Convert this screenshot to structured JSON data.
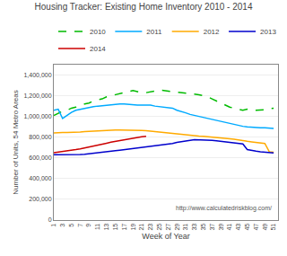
{
  "chart_data": {
    "type": "line",
    "title": "Housing Tracker: Existing Home Inventory 2010 - 2014",
    "x_label": "Week of Year",
    "y_label": "Number of Units, 54 Metro Areas",
    "annotations": [
      "http://www.calculatedriskblog.com/"
    ],
    "x": [
      1,
      2,
      3,
      4,
      5,
      6,
      7,
      8,
      9,
      10,
      11,
      12,
      13,
      14,
      15,
      16,
      17,
      18,
      19,
      20,
      21,
      22,
      23,
      24,
      25,
      26,
      27,
      28,
      29,
      30,
      31,
      32,
      33,
      34,
      35,
      36,
      37,
      38,
      39,
      40,
      41,
      42,
      43,
      44,
      45,
      46,
      47,
      48,
      49,
      50,
      51
    ],
    "xlim": [
      1,
      52
    ],
    "xticks": [
      1,
      3,
      5,
      7,
      9,
      11,
      13,
      15,
      17,
      19,
      21,
      23,
      25,
      27,
      29,
      31,
      33,
      35,
      37,
      39,
      41,
      43,
      45,
      47,
      49,
      51
    ],
    "ylim": [
      0,
      1500000
    ],
    "yticks": [
      0,
      {
        "value": 200000,
        "label": "200,000"
      },
      {
        "value": 400000,
        "label": "400,000"
      },
      {
        "value": 600000,
        "label": "600,000"
      },
      {
        "value": 800000,
        "label": "800,000"
      },
      {
        "value": 1000000,
        "label": "1,000,000"
      },
      {
        "value": 1200000,
        "label": "1,200,000"
      },
      {
        "value": 1400000,
        "label": "1,400,000"
      }
    ],
    "grid": true,
    "legend": "top",
    "series": [
      {
        "name": "2010",
        "color": "#00bb00",
        "line_style": "dashed",
        "values": [
          1010000,
          1030000,
          1050000,
          1060000,
          1080000,
          1090000,
          1100000,
          1120000,
          1130000,
          1150000,
          1160000,
          1170000,
          1190000,
          1200000,
          1210000,
          1220000,
          1230000,
          1240000,
          1250000,
          1240000,
          1230000,
          1230000,
          1240000,
          1250000,
          1255000,
          1250000,
          1245000,
          1240000,
          1235000,
          1230000,
          1225000,
          1220000,
          1220000,
          1210000,
          1200000,
          1190000,
          1170000,
          1150000,
          1130000,
          1110000,
          1090000,
          1080000,
          1070000,
          1060000,
          1070000,
          1060000,
          1060000,
          1060000,
          1065000,
          1075000,
          1080000
        ]
      },
      {
        "name": "2011",
        "color": "#00aaff",
        "line_style": "solid",
        "values": [
          1060000,
          1070000,
          980000,
          1010000,
          1040000,
          1060000,
          1070000,
          1080000,
          1090000,
          1095000,
          1100000,
          1105000,
          1110000,
          1115000,
          1120000,
          1120000,
          1120000,
          1115000,
          1110000,
          1110000,
          1110000,
          1110000,
          1110000,
          1100000,
          1095000,
          1090000,
          1085000,
          1080000,
          1060000,
          1050000,
          1035000,
          1020000,
          1010000,
          1000000,
          990000,
          980000,
          970000,
          960000,
          950000,
          940000,
          930000,
          920000,
          910000,
          905000,
          900000,
          895000,
          890000,
          890000,
          890000,
          890000,
          885000
        ]
      },
      {
        "name": "2012",
        "color": "#ffaa00",
        "line_style": "solid",
        "values": [
          840000,
          845000,
          845000,
          845000,
          845000,
          848000,
          850000,
          855000,
          858000,
          860000,
          862000,
          864000,
          866000,
          868000,
          870000,
          870000,
          870000,
          870000,
          868000,
          866000,
          864000,
          862000,
          860000,
          855000,
          850000,
          845000,
          840000,
          838000,
          835000,
          830000,
          825000,
          820000,
          815000,
          810000,
          808000,
          805000,
          800000,
          796000,
          792000,
          788000,
          785000,
          780000,
          772000,
          765000,
          760000,
          755000,
          750000,
          745000,
          740000,
          660000,
          655000
        ]
      },
      {
        "name": "2013",
        "color": "#0000cc",
        "line_style": "solid",
        "values": [
          630000,
          630000,
          628000,
          628000,
          628000,
          630000,
          633000,
          636000,
          640000,
          645000,
          650000,
          655000,
          660000,
          665000,
          670000,
          675000,
          680000,
          685000,
          690000,
          695000,
          700000,
          705000,
          710000,
          715000,
          720000,
          725000,
          730000,
          740000,
          750000,
          758000,
          765000,
          770000,
          775000,
          775000,
          775000,
          773000,
          770000,
          765000,
          760000,
          755000,
          750000,
          745000,
          740000,
          735000,
          680000,
          670000,
          665000,
          660000,
          655000,
          650000,
          648000
        ]
      },
      {
        "name": "2014",
        "color": "#cc0000",
        "line_style": "solid",
        "values": [
          650000,
          655000,
          660000,
          665000,
          672000,
          680000,
          688000,
          696000,
          705000,
          715000,
          724000,
          733000,
          742000,
          752000,
          760000,
          768000,
          775000,
          780000,
          790000,
          800000,
          805000,
          808000,
          null,
          null,
          null,
          null,
          null,
          null,
          null,
          null,
          null,
          null,
          null,
          null,
          null,
          null,
          null,
          null,
          null,
          null,
          null,
          null,
          null,
          null,
          null,
          null,
          null,
          null,
          null,
          null,
          null
        ]
      }
    ]
  }
}
